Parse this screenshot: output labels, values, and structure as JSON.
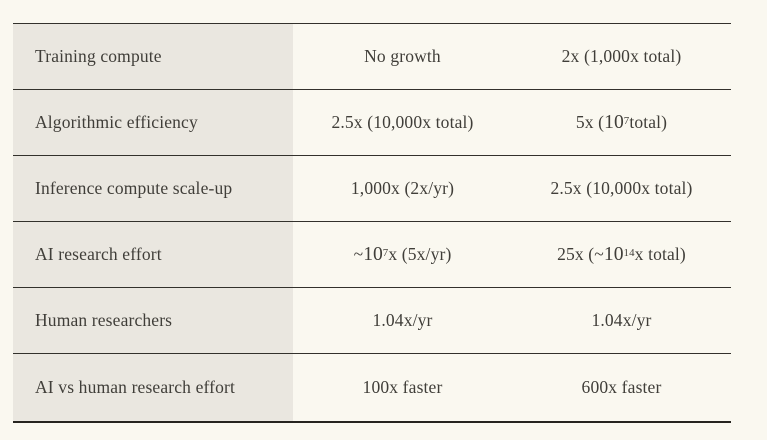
{
  "colors": {
    "page_background": "#faf8f0",
    "label_column_background": "#eae7e0",
    "rule_color": "#33312c",
    "text_color": "#403e39"
  },
  "table": {
    "rows": [
      {
        "label": "Training compute",
        "cells": [
          [
            {
              "t": "No growth"
            }
          ],
          [
            {
              "t": "2x (1,000x total)"
            }
          ]
        ]
      },
      {
        "label": "Algorithmic efficiency",
        "cells": [
          [
            {
              "t": "2.5x (10,000x total)"
            }
          ],
          [
            {
              "t": "5x ("
            },
            {
              "t": "10",
              "big": true
            },
            {
              "t": "7",
              "sup": true
            },
            {
              "t": " total)"
            }
          ]
        ]
      },
      {
        "label": "Inference compute scale-up",
        "cells": [
          [
            {
              "t": "1,000x (2x/yr)"
            }
          ],
          [
            {
              "t": "2.5x (10,000x total)"
            }
          ]
        ]
      },
      {
        "label": "AI research effort",
        "cells": [
          [
            {
              "t": "~"
            },
            {
              "t": "10",
              "big": true
            },
            {
              "t": "7",
              "sup": true
            },
            {
              "t": "x (5x/yr)"
            }
          ],
          [
            {
              "t": "25x (~"
            },
            {
              "t": "10",
              "big": true
            },
            {
              "t": "14",
              "sup": true
            },
            {
              "t": "x total)"
            }
          ]
        ]
      },
      {
        "label": "Human researchers",
        "cells": [
          [
            {
              "t": "1.04x/yr"
            }
          ],
          [
            {
              "t": "1.04x/yr"
            }
          ]
        ]
      },
      {
        "label": "AI vs human research effort",
        "cells": [
          [
            {
              "t": "100x faster"
            }
          ],
          [
            {
              "t": "600x faster"
            }
          ]
        ]
      }
    ]
  }
}
